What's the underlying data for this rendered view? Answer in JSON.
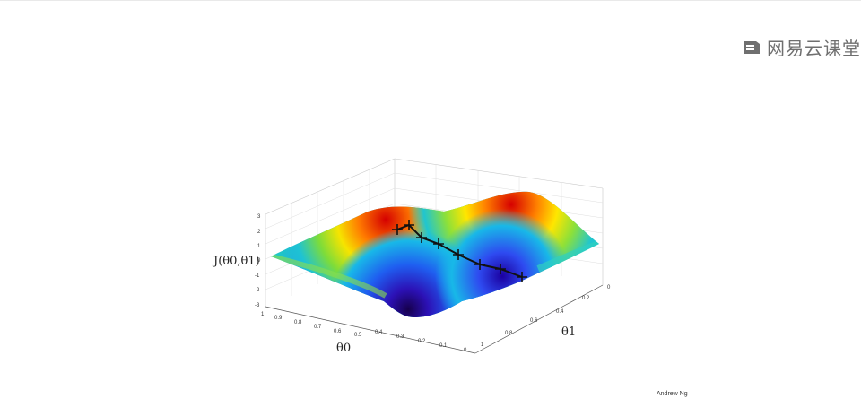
{
  "slide": {
    "watermark_text": "网易云课堂",
    "credit": "Andrew Ng"
  },
  "plot": {
    "z_label": "J(θ0,θ1)",
    "x_label": "θ0",
    "y_label": "θ1",
    "z_ticks": [
      "3",
      "2",
      "1",
      "0",
      "-1",
      "-2",
      "-3"
    ],
    "x_ticks": [
      "1",
      "0.9",
      "0.8",
      "0.7",
      "0.6",
      "0.5",
      "0.4",
      "0.3",
      "0.2",
      "0.1",
      "0"
    ],
    "y_ticks": [
      "0",
      "0.2",
      "0.4",
      "0.6",
      "0.8",
      "1"
    ],
    "surface_colormap": "jet",
    "path_color": "#111111",
    "path_marker": "cross",
    "path_steps": 8
  }
}
